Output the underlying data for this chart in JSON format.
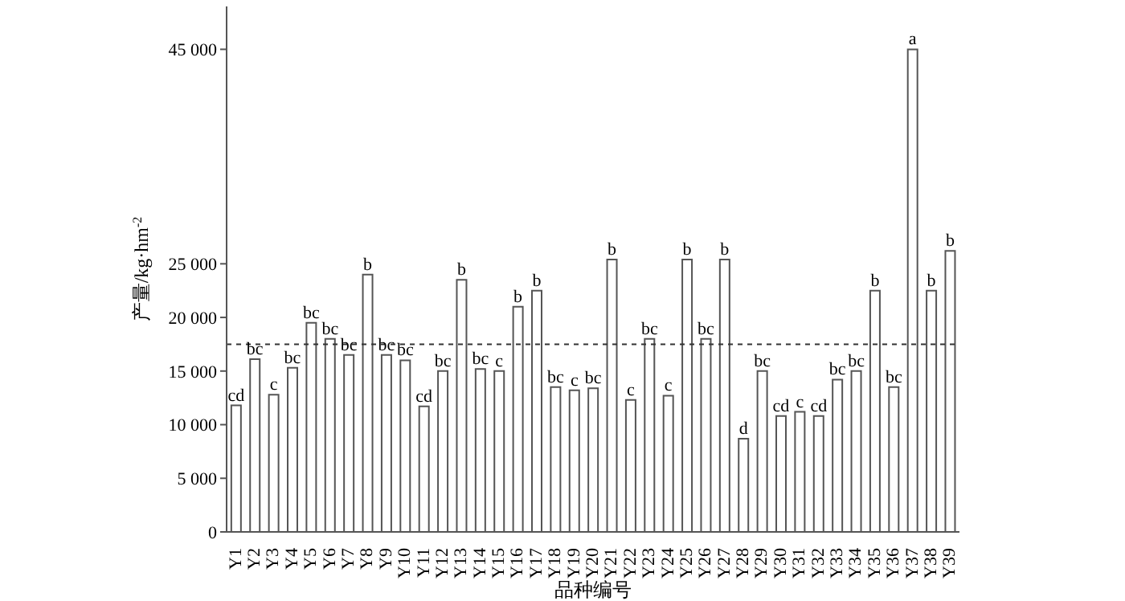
{
  "chart_data": {
    "type": "bar",
    "xlabel": "品种编号",
    "ylabel": "产量/kg·hm$^{-2}$",
    "categories": [
      "Y1",
      "Y2",
      "Y3",
      "Y4",
      "Y5",
      "Y6",
      "Y7",
      "Y8",
      "Y9",
      "Y10",
      "Y11",
      "Y12",
      "Y13",
      "Y14",
      "Y15",
      "Y16",
      "Y17",
      "Y18",
      "Y19",
      "Y20",
      "Y21",
      "Y22",
      "Y23",
      "Y24",
      "Y25",
      "Y26",
      "Y27",
      "Y28",
      "Y29",
      "Y30",
      "Y31",
      "Y32",
      "Y33",
      "Y34",
      "Y35",
      "Y36",
      "Y37",
      "Y38",
      "Y39"
    ],
    "values": [
      11800,
      16100,
      12800,
      15300,
      19500,
      18000,
      16500,
      24000,
      16500,
      16000,
      11700,
      15000,
      23500,
      15200,
      15000,
      21000,
      22500,
      13500,
      13200,
      13400,
      25400,
      12300,
      18000,
      12700,
      25400,
      18000,
      25400,
      8700,
      15000,
      10800,
      11200,
      10800,
      14200,
      15000,
      22500,
      13500,
      45000,
      22500,
      26200
    ],
    "value_labels": [
      "cd",
      "bc",
      "c",
      "bc",
      "bc",
      "bc",
      "bc",
      "b",
      "bc",
      "bc",
      "cd",
      "bc",
      "b",
      "bc",
      "c",
      "b",
      "b",
      "bc",
      "c",
      "bc",
      "b",
      "c",
      "bc",
      "c",
      "b",
      "bc",
      "b",
      "d",
      "bc",
      "cd",
      "c",
      "cd",
      "bc",
      "bc",
      "b",
      "bc",
      "a",
      "b",
      "b"
    ],
    "color": "#ffffff",
    "ylim": [
      0,
      49000
    ],
    "yticks": [
      0,
      {
        "value": 5000,
        "label": "5 000"
      },
      {
        "value": 10000,
        "label": "10 000"
      },
      {
        "value": 15000,
        "label": "15 000"
      },
      {
        "value": 20000,
        "label": "20 000"
      },
      {
        "value": 25000,
        "label": "25 000"
      },
      {
        "value": 45000,
        "label": "45 000"
      }
    ],
    "ref_lines": [
      {
        "axis": "y",
        "value": 17500,
        "color": "#333333",
        "line_style": "dashed"
      }
    ]
  }
}
